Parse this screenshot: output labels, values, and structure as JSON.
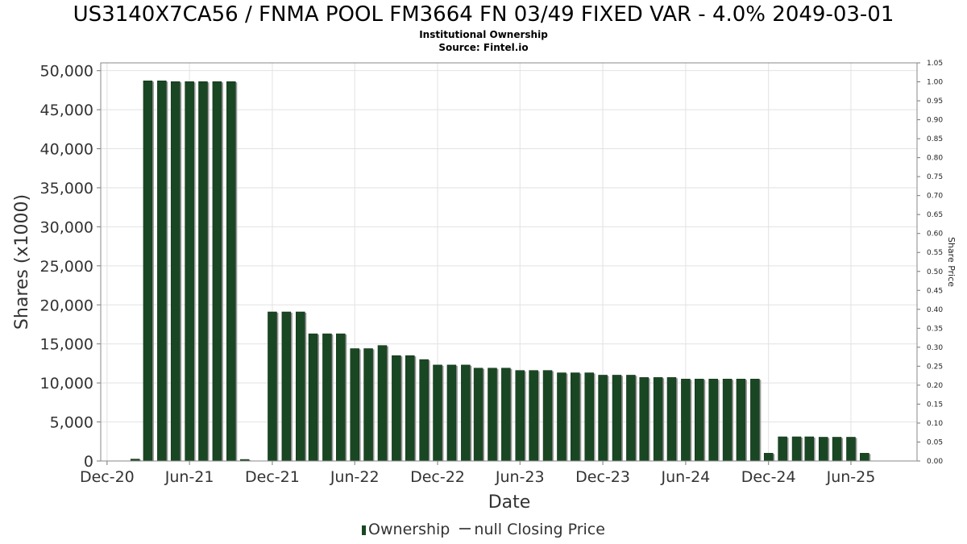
{
  "header": {
    "title": "US3140X7CA56 / FNMA POOL FM3664 FN 03/49 FIXED VAR - 4.0% 2049-03-01",
    "subtitle": "Institutional Ownership",
    "source": "Source: Fintel.io"
  },
  "legend": {
    "ownership_label": "Ownership",
    "price_label": "null Closing Price"
  },
  "chart_data": {
    "type": "bar",
    "title": "US3140X7CA56 / FNMA POOL FM3664 FN 03/49 FIXED VAR - 4.0% 2049-03-01",
    "subtitle": "Institutional Ownership",
    "xlabel": "Date",
    "ylabel": "Shares (x1000)",
    "y2label": "Share Price",
    "ylim": [
      0,
      51000
    ],
    "y2lim": [
      0,
      1.05
    ],
    "xlim": [
      "2020-11-17",
      "2025-10-25"
    ],
    "grid": true,
    "legend_position": "bottom",
    "bar_color": "#1a4723",
    "y_ticks": [
      "0",
      "5,000",
      "10,000",
      "15,000",
      "20,000",
      "25,000",
      "30,000",
      "35,000",
      "40,000",
      "45,000",
      "50,000"
    ],
    "y2_ticks": [
      "0.00",
      "0.05",
      "0.10",
      "0.15",
      "0.20",
      "0.25",
      "0.30",
      "0.35",
      "0.40",
      "0.45",
      "0.50",
      "0.55",
      "0.60",
      "0.65",
      "0.70",
      "0.75",
      "0.80",
      "0.85",
      "0.90",
      "0.95",
      "1.00",
      "1.05"
    ],
    "x_ticks": [
      {
        "label": "Dec-20",
        "date": "2020-12-01"
      },
      {
        "label": "Jun-21",
        "date": "2021-06-01"
      },
      {
        "label": "Dec-21",
        "date": "2021-12-01"
      },
      {
        "label": "Jun-22",
        "date": "2022-06-01"
      },
      {
        "label": "Dec-22",
        "date": "2022-12-01"
      },
      {
        "label": "Jun-23",
        "date": "2023-06-01"
      },
      {
        "label": "Dec-23",
        "date": "2023-12-01"
      },
      {
        "label": "Jun-24",
        "date": "2024-06-01"
      },
      {
        "label": "Dec-24",
        "date": "2024-12-01"
      },
      {
        "label": "Jun-25",
        "date": "2025-06-01"
      }
    ],
    "series": [
      {
        "name": "Ownership",
        "points": [
          {
            "x": "2021-02-01",
            "y": 250
          },
          {
            "x": "2021-03-01",
            "y": 48700
          },
          {
            "x": "2021-04-01",
            "y": 48700
          },
          {
            "x": "2021-05-01",
            "y": 48600
          },
          {
            "x": "2021-06-01",
            "y": 48600
          },
          {
            "x": "2021-07-01",
            "y": 48600
          },
          {
            "x": "2021-08-01",
            "y": 48600
          },
          {
            "x": "2021-09-01",
            "y": 48600
          },
          {
            "x": "2021-10-01",
            "y": 200
          },
          {
            "x": "2021-12-01",
            "y": 19100
          },
          {
            "x": "2022-01-01",
            "y": 19100
          },
          {
            "x": "2022-02-01",
            "y": 19100
          },
          {
            "x": "2022-03-01",
            "y": 16300
          },
          {
            "x": "2022-04-01",
            "y": 16300
          },
          {
            "x": "2022-05-01",
            "y": 16300
          },
          {
            "x": "2022-06-01",
            "y": 14400
          },
          {
            "x": "2022-07-01",
            "y": 14400
          },
          {
            "x": "2022-08-01",
            "y": 14800
          },
          {
            "x": "2022-09-01",
            "y": 13500
          },
          {
            "x": "2022-10-01",
            "y": 13500
          },
          {
            "x": "2022-11-01",
            "y": 13000
          },
          {
            "x": "2022-12-01",
            "y": 12300
          },
          {
            "x": "2023-01-01",
            "y": 12300
          },
          {
            "x": "2023-02-01",
            "y": 12300
          },
          {
            "x": "2023-03-01",
            "y": 11900
          },
          {
            "x": "2023-04-01",
            "y": 11900
          },
          {
            "x": "2023-05-01",
            "y": 11900
          },
          {
            "x": "2023-06-01",
            "y": 11600
          },
          {
            "x": "2023-07-01",
            "y": 11600
          },
          {
            "x": "2023-08-01",
            "y": 11600
          },
          {
            "x": "2023-09-01",
            "y": 11300
          },
          {
            "x": "2023-10-01",
            "y": 11300
          },
          {
            "x": "2023-11-01",
            "y": 11300
          },
          {
            "x": "2023-12-01",
            "y": 11000
          },
          {
            "x": "2024-01-01",
            "y": 11000
          },
          {
            "x": "2024-02-01",
            "y": 11000
          },
          {
            "x": "2024-03-01",
            "y": 10700
          },
          {
            "x": "2024-04-01",
            "y": 10700
          },
          {
            "x": "2024-05-01",
            "y": 10700
          },
          {
            "x": "2024-06-01",
            "y": 10500
          },
          {
            "x": "2024-07-01",
            "y": 10500
          },
          {
            "x": "2024-08-01",
            "y": 10500
          },
          {
            "x": "2024-09-01",
            "y": 10500
          },
          {
            "x": "2024-10-01",
            "y": 10500
          },
          {
            "x": "2024-11-01",
            "y": 10500
          },
          {
            "x": "2024-12-01",
            "y": 1000
          },
          {
            "x": "2025-01-01",
            "y": 3100
          },
          {
            "x": "2025-02-01",
            "y": 3100
          },
          {
            "x": "2025-03-01",
            "y": 3100
          },
          {
            "x": "2025-04-01",
            "y": 3050
          },
          {
            "x": "2025-05-01",
            "y": 3050
          },
          {
            "x": "2025-06-01",
            "y": 3050
          },
          {
            "x": "2025-07-01",
            "y": 1000
          }
        ]
      }
    ]
  }
}
